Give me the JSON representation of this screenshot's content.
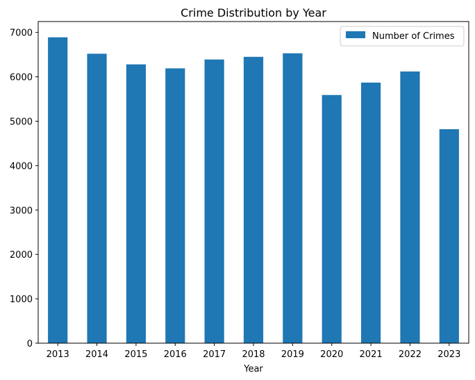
{
  "chart_data": {
    "type": "bar",
    "title": "Crime Distribution by Year",
    "xlabel": "Year",
    "ylabel": "",
    "categories": [
      "2013",
      "2014",
      "2015",
      "2016",
      "2017",
      "2018",
      "2019",
      "2020",
      "2021",
      "2022",
      "2023"
    ],
    "series": [
      {
        "name": "Number of Crimes",
        "color": "#1f77b4",
        "values": [
          6890,
          6520,
          6280,
          6190,
          6390,
          6450,
          6530,
          5590,
          5870,
          6120,
          4820
        ]
      }
    ],
    "ylim": [
      0,
      7245
    ],
    "yticks": [
      0,
      1000,
      2000,
      3000,
      4000,
      5000,
      6000,
      7000
    ],
    "grid": false,
    "legend": {
      "placement": "top-right"
    }
  }
}
